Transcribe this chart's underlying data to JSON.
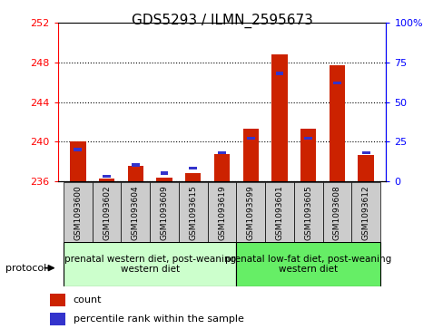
{
  "title": "GDS5293 / ILMN_2595673",
  "samples": [
    "GSM1093600",
    "GSM1093602",
    "GSM1093604",
    "GSM1093609",
    "GSM1093615",
    "GSM1093619",
    "GSM1093599",
    "GSM1093601",
    "GSM1093605",
    "GSM1093608",
    "GSM1093612"
  ],
  "count_values": [
    240.0,
    236.2,
    237.5,
    236.3,
    236.8,
    238.7,
    241.3,
    248.8,
    241.3,
    247.7,
    238.6
  ],
  "percentile_values": [
    20,
    3,
    10,
    5,
    8,
    18,
    27,
    68,
    27,
    62,
    18
  ],
  "left_ylim": [
    236,
    252
  ],
  "left_yticks": [
    236,
    240,
    244,
    248,
    252
  ],
  "right_ylim": [
    0,
    100
  ],
  "right_yticks": [
    0,
    25,
    50,
    75,
    100
  ],
  "bar_color": "#cc2200",
  "pct_color": "#3333cc",
  "group1_label": "prenatal western diet, post-weaning\nwestern diet",
  "group2_label": "prenatal low-fat diet, post-weaning\nwestern diet",
  "group1_color": "#ccffcc",
  "group2_color": "#66ee66",
  "legend_count": "count",
  "legend_pct": "percentile rank within the sample",
  "bar_width": 0.55,
  "blue_bar_width": 0.28,
  "blue_bar_height": 0.32,
  "base_value": 236,
  "tick_bg_color": "#cccccc"
}
